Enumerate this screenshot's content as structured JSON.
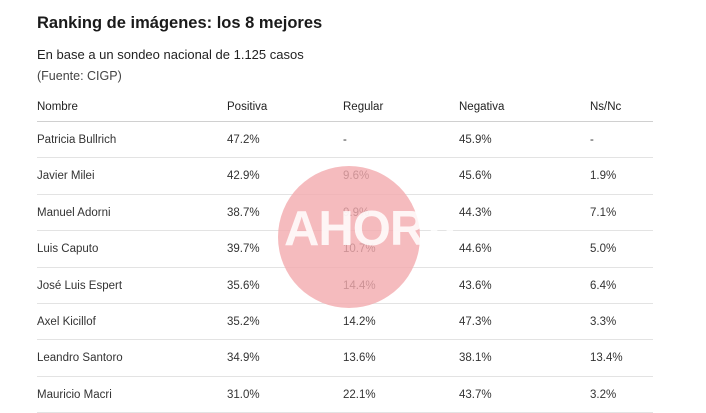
{
  "chart_data": {
    "type": "table",
    "title": "Ranking de imágenes: los 8 mejores",
    "subtitle": "En base a un sondeo nacional de 1.125 casos",
    "source": "(Fuente: CIGP)",
    "columns": [
      "Nombre",
      "Positiva",
      "Regular",
      "Negativa",
      "Ns/Nc"
    ],
    "rows": [
      [
        "Patricia Bullrich",
        "47.2%",
        "-",
        "45.9%",
        "-"
      ],
      [
        "Javier Milei",
        "42.9%",
        "9.6%",
        "45.6%",
        "1.9%"
      ],
      [
        "Manuel Adorni",
        "38.7%",
        "9.9%",
        "44.3%",
        "7.1%"
      ],
      [
        "Luis Caputo",
        "39.7%",
        "10.7%",
        "44.6%",
        "5.0%"
      ],
      [
        "José Luis Espert",
        "35.6%",
        "14.4%",
        "43.6%",
        "6.4%"
      ],
      [
        "Axel Kicillof",
        "35.2%",
        "14.2%",
        "47.3%",
        "3.3%"
      ],
      [
        "Leandro Santoro",
        "34.9%",
        "13.6%",
        "38.1%",
        "13.4%"
      ],
      [
        "Mauricio Macri",
        "31.0%",
        "22.1%",
        "43.7%",
        "3.2%"
      ]
    ]
  },
  "watermark": {
    "text": "AHORA",
    "color": "#f2aaae"
  }
}
